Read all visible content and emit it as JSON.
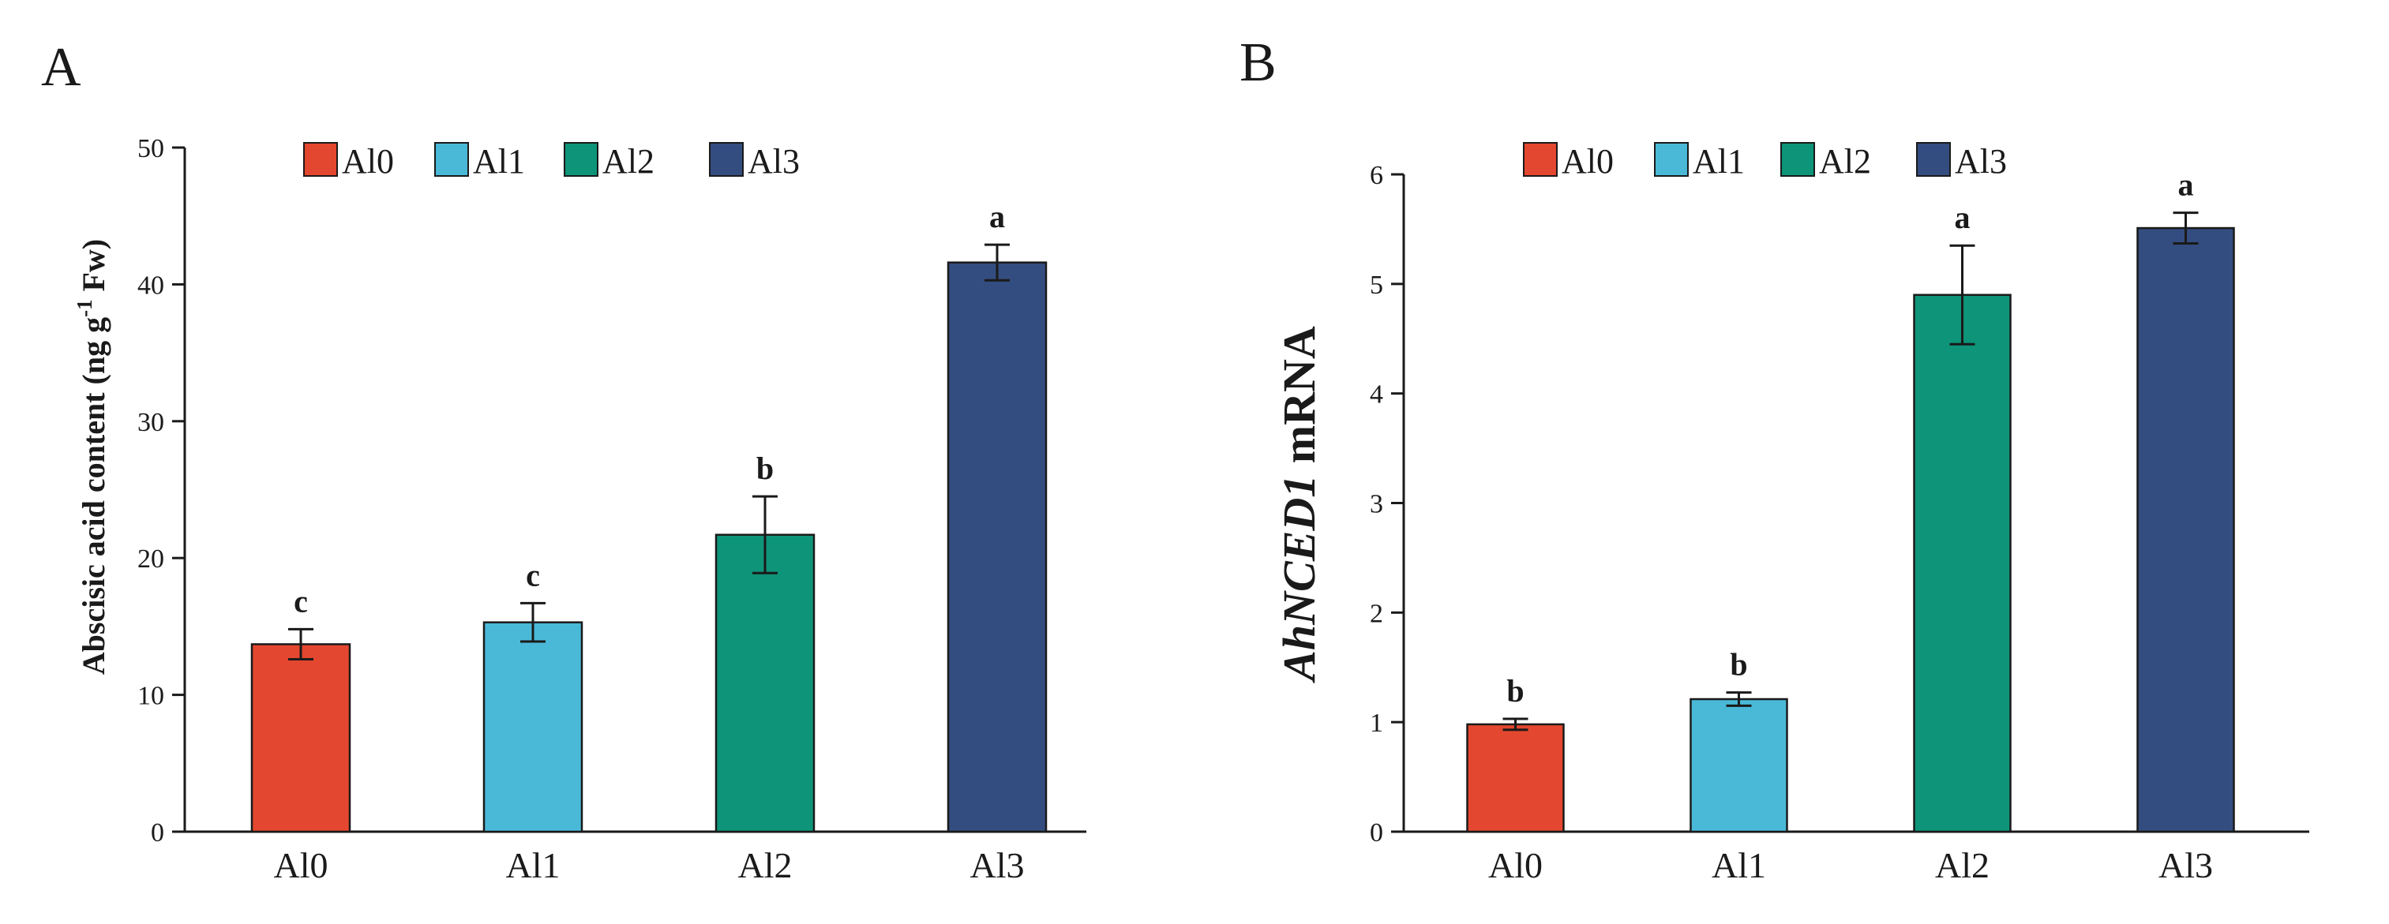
{
  "colors": {
    "Al0": "#e4472f",
    "Al1": "#4ab9d8",
    "Al2": "#0e9479",
    "Al3": "#344d80",
    "axis": "#1a1a1a"
  },
  "chart_data": [
    {
      "panel": "A",
      "type": "bar",
      "title": "",
      "categories": [
        "Al0",
        "Al1",
        "Al2",
        "Al3"
      ],
      "values": [
        13.7,
        15.3,
        21.7,
        41.6
      ],
      "errors": [
        1.1,
        1.4,
        2.8,
        1.3
      ],
      "significance": [
        "c",
        "c",
        "b",
        "a"
      ],
      "legend": [
        "Al0",
        "Al1",
        "Al2",
        "Al3"
      ],
      "legend_position": "top",
      "xlabel": "",
      "ylabel_parts": [
        "Abscisic acid content (ng g",
        "-1",
        " Fw)"
      ],
      "ylim": [
        0,
        50
      ],
      "yticks": [
        0,
        10,
        20,
        30,
        40,
        50
      ],
      "grid": false
    },
    {
      "panel": "B",
      "type": "bar",
      "title": "",
      "categories": [
        "Al0",
        "Al1",
        "Al2",
        "Al3"
      ],
      "values": [
        0.98,
        1.21,
        4.9,
        5.51
      ],
      "errors": [
        0.05,
        0.06,
        0.45,
        0.14
      ],
      "significance": [
        "b",
        "b",
        "a",
        "a"
      ],
      "legend": [
        "Al0",
        "Al1",
        "Al2",
        "Al3"
      ],
      "legend_position": "top",
      "xlabel": "",
      "ylabel_parts": [
        "AhNCED1",
        " mRNA"
      ],
      "ylim": [
        0,
        6
      ],
      "yticks": [
        0,
        1,
        2,
        3,
        4,
        5,
        6
      ],
      "grid": false
    }
  ]
}
